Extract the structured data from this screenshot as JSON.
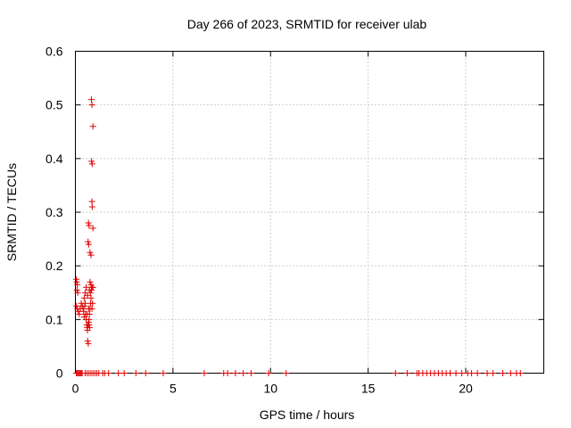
{
  "chart_data": {
    "type": "scatter",
    "title": "Day 266 of 2023, SRMTID for receiver ulab",
    "xlabel": "GPS time / hours",
    "ylabel": "SRMTID / TECUs",
    "xlim": [
      0,
      24
    ],
    "ylim": [
      0,
      0.6
    ],
    "xticks": [
      0,
      5,
      10,
      15,
      20
    ],
    "yticks": [
      0,
      0.1,
      0.2,
      0.3,
      0.4,
      0.5,
      0.6
    ],
    "ytick_labels": [
      "0",
      "0.1",
      "0.2",
      "0.3",
      "0.4",
      "0.5",
      "0.6"
    ],
    "grid": true,
    "marker": "+",
    "color": "#e00000",
    "series": [
      {
        "name": "SRMTID",
        "points": [
          [
            0.82,
            0.51
          ],
          [
            0.85,
            0.5
          ],
          [
            0.9,
            0.46
          ],
          [
            0.83,
            0.395
          ],
          [
            0.86,
            0.39
          ],
          [
            0.85,
            0.32
          ],
          [
            0.86,
            0.31
          ],
          [
            0.9,
            0.27
          ],
          [
            0.67,
            0.28
          ],
          [
            0.7,
            0.275
          ],
          [
            0.65,
            0.245
          ],
          [
            0.68,
            0.24
          ],
          [
            0.75,
            0.225
          ],
          [
            0.8,
            0.22
          ],
          [
            0.05,
            0.175
          ],
          [
            0.07,
            0.17
          ],
          [
            0.1,
            0.165
          ],
          [
            0.08,
            0.155
          ],
          [
            0.12,
            0.15
          ],
          [
            0.05,
            0.125
          ],
          [
            0.1,
            0.12
          ],
          [
            0.15,
            0.115
          ],
          [
            0.2,
            0.11
          ],
          [
            0.25,
            0.12
          ],
          [
            0.3,
            0.13
          ],
          [
            0.35,
            0.125
          ],
          [
            0.4,
            0.12
          ],
          [
            0.42,
            0.115
          ],
          [
            0.45,
            0.105
          ],
          [
            0.5,
            0.13
          ],
          [
            0.45,
            0.14
          ],
          [
            0.5,
            0.15
          ],
          [
            0.55,
            0.16
          ],
          [
            0.48,
            0.125
          ],
          [
            0.52,
            0.11
          ],
          [
            0.55,
            0.1
          ],
          [
            0.58,
            0.09
          ],
          [
            0.6,
            0.085
          ],
          [
            0.62,
            0.08
          ],
          [
            0.65,
            0.09
          ],
          [
            0.68,
            0.095
          ],
          [
            0.7,
            0.1
          ],
          [
            0.72,
            0.11
          ],
          [
            0.75,
            0.12
          ],
          [
            0.78,
            0.13
          ],
          [
            0.8,
            0.14
          ],
          [
            0.82,
            0.155
          ],
          [
            0.85,
            0.16
          ],
          [
            0.75,
            0.17
          ],
          [
            0.8,
            0.165
          ],
          [
            0.9,
            0.16
          ],
          [
            0.72,
            0.155
          ],
          [
            0.77,
            0.15
          ],
          [
            0.62,
            0.145
          ],
          [
            0.63,
            0.06
          ],
          [
            0.66,
            0.055
          ],
          [
            0.7,
            0.09
          ],
          [
            0.73,
            0.085
          ],
          [
            0.68,
            0.12
          ],
          [
            0.85,
            0.12
          ],
          [
            0.88,
            0.13
          ],
          [
            0.6,
            0.11
          ],
          [
            0.05,
            0
          ],
          [
            0.1,
            0
          ],
          [
            0.15,
            0
          ],
          [
            0.2,
            0
          ],
          [
            0.25,
            0
          ],
          [
            0.3,
            0
          ],
          [
            0.35,
            0
          ],
          [
            0.5,
            0
          ],
          [
            0.6,
            0
          ],
          [
            0.7,
            0
          ],
          [
            0.8,
            0
          ],
          [
            0.9,
            0
          ],
          [
            1.0,
            0
          ],
          [
            1.1,
            0
          ],
          [
            1.2,
            0
          ],
          [
            1.4,
            0
          ],
          [
            1.5,
            0
          ],
          [
            1.7,
            0
          ],
          [
            2.2,
            0
          ],
          [
            2.5,
            0
          ],
          [
            3.1,
            0
          ],
          [
            3.6,
            0
          ],
          [
            4.5,
            0
          ],
          [
            6.6,
            0
          ],
          [
            7.6,
            0
          ],
          [
            7.8,
            0
          ],
          [
            8.2,
            0
          ],
          [
            8.6,
            0
          ],
          [
            9.0,
            0
          ],
          [
            9.9,
            0
          ],
          [
            10.8,
            0
          ],
          [
            16.4,
            0
          ],
          [
            17.0,
            0
          ],
          [
            17.5,
            0
          ],
          [
            17.6,
            0
          ],
          [
            17.8,
            0
          ],
          [
            18.0,
            0
          ],
          [
            18.2,
            0
          ],
          [
            18.4,
            0
          ],
          [
            18.6,
            0
          ],
          [
            18.8,
            0
          ],
          [
            19.0,
            0
          ],
          [
            19.2,
            0
          ],
          [
            19.5,
            0
          ],
          [
            19.8,
            0
          ],
          [
            20.1,
            0
          ],
          [
            20.3,
            0
          ],
          [
            20.6,
            0
          ],
          [
            21.1,
            0
          ],
          [
            21.4,
            0
          ],
          [
            21.9,
            0
          ],
          [
            22.3,
            0
          ],
          [
            22.6,
            0
          ],
          [
            22.8,
            0
          ]
        ]
      }
    ]
  }
}
